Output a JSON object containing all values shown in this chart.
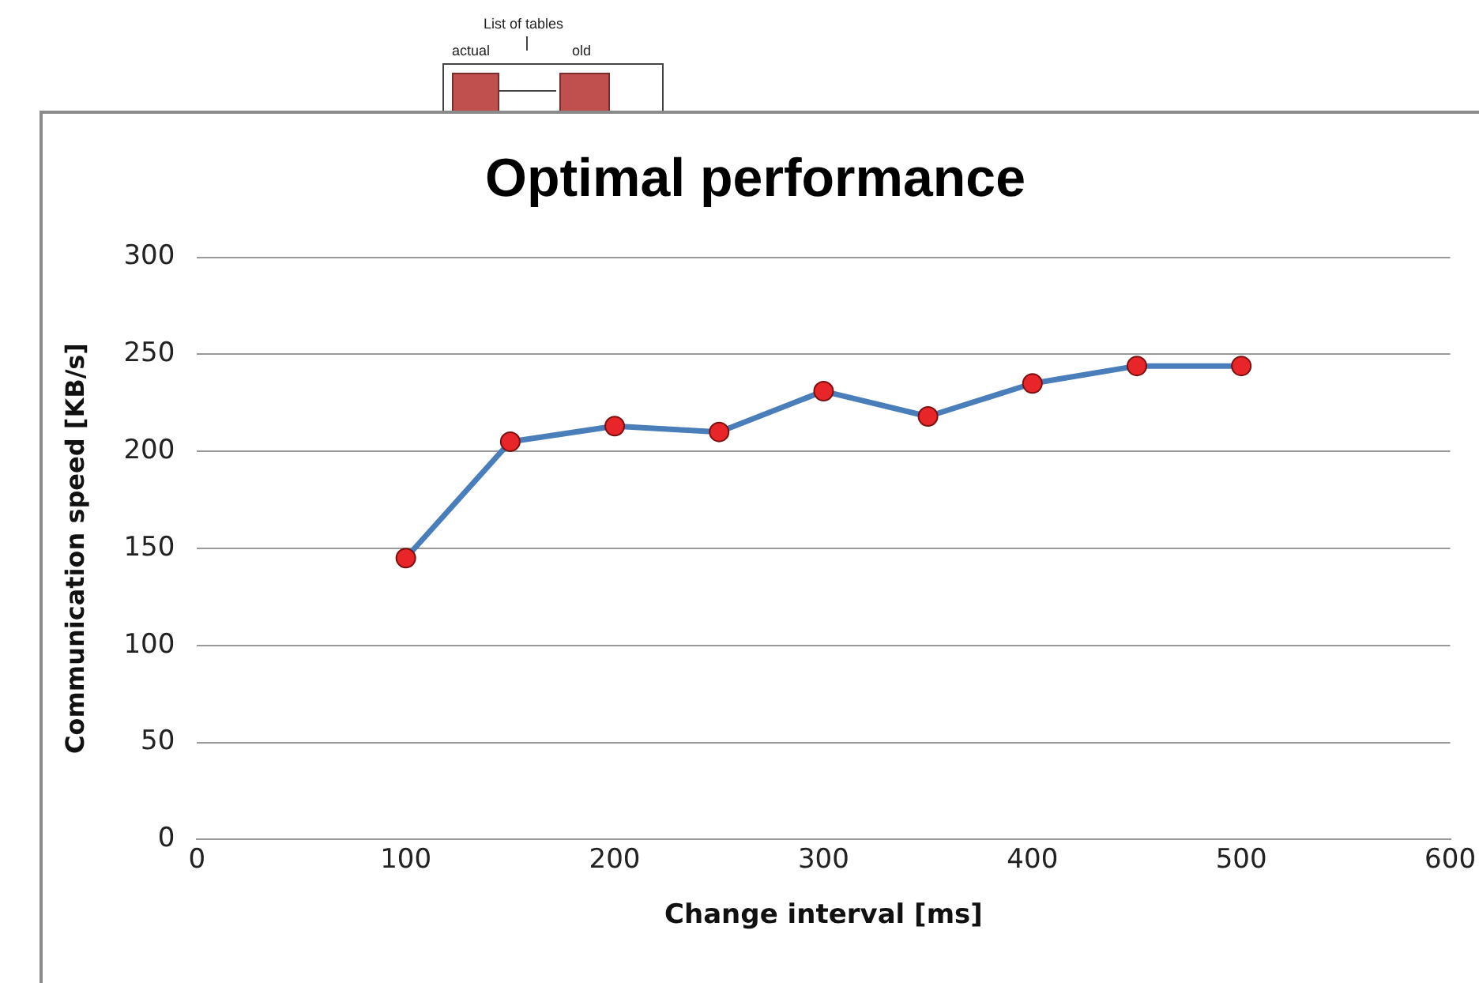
{
  "chart_data": {
    "type": "line",
    "title": "Optimal performance",
    "xlabel": "Change interval [ms]",
    "ylabel": "Communication speed [KB/s]",
    "annotations": [
      "List of tables",
      "actual",
      "old"
    ],
    "x": [
      100,
      150,
      200,
      250,
      300,
      350,
      400,
      450,
      500
    ],
    "series": [
      {
        "color": "#4a7ebb",
        "values": [
          145,
          205,
          213,
          210,
          231,
          218,
          235,
          244,
          244
        ]
      }
    ],
    "xlim": [
      0,
      600
    ],
    "xticks": [
      0,
      100,
      200,
      300,
      400,
      500,
      600
    ],
    "ylim": [
      0,
      300
    ],
    "yticks": [
      0,
      50,
      100,
      150,
      200,
      250,
      300
    ],
    "grid": "y",
    "legend": false,
    "marker": "circle",
    "line_style": "solid"
  }
}
